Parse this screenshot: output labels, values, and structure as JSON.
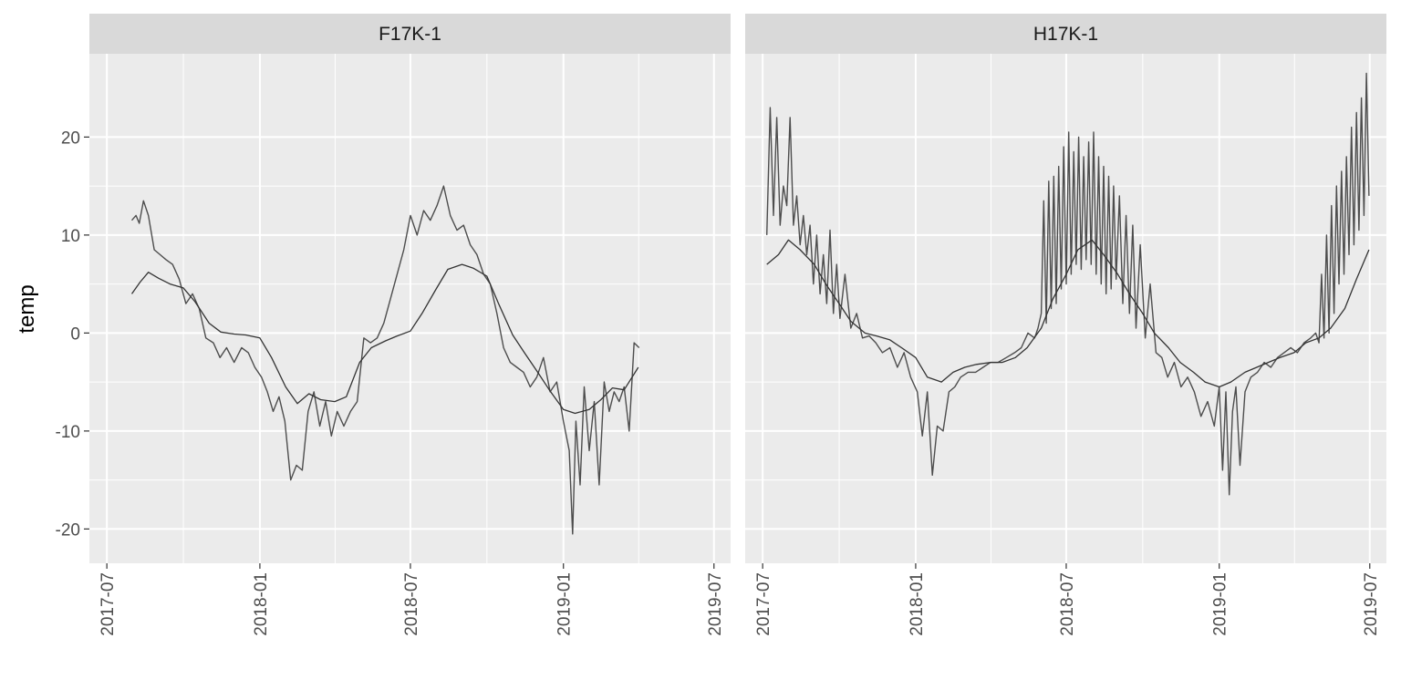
{
  "chart_data": {
    "type": "line",
    "ylabel": "temp",
    "xlabel": "",
    "y_ticks": [
      -20,
      -10,
      0,
      10,
      20
    ],
    "y_tick_labels": [
      "-20",
      "-10",
      "0",
      "10",
      "20"
    ],
    "ylim": [
      -23.5,
      28.5
    ],
    "x_ticks": [
      "2017-07-01",
      "2018-01-01",
      "2018-07-01",
      "2019-01-01",
      "2019-07-01"
    ],
    "x_tick_labels": [
      "2017-07",
      "2018-01",
      "2018-07",
      "2019-01",
      "2019-07"
    ],
    "xlim": [
      "2017-06-10",
      "2019-07-21"
    ],
    "grid": true,
    "colors": {
      "panel_bg": "#ebebeb",
      "strip_bg": "#d9d9d9",
      "grid": "#ffffff",
      "series_raw": "#4d4d4d",
      "series_smooth": "#333333"
    },
    "panels": [
      {
        "strip": "F17K-1",
        "series": [
          {
            "role": "raw",
            "x": [
              "2017-07-31",
              "2017-08-05",
              "2017-08-09",
              "2017-08-14",
              "2017-08-20",
              "2017-08-27",
              "2017-09-03",
              "2017-09-10",
              "2017-09-18",
              "2017-09-26",
              "2017-10-04",
              "2017-10-12",
              "2017-10-20",
              "2017-10-28",
              "2017-11-06",
              "2017-11-14",
              "2017-11-22",
              "2017-12-01",
              "2017-12-10",
              "2017-12-18",
              "2017-12-26",
              "2018-01-03",
              "2018-01-10",
              "2018-01-17",
              "2018-01-24",
              "2018-01-31",
              "2018-02-07",
              "2018-02-14",
              "2018-02-21",
              "2018-02-28",
              "2018-03-07",
              "2018-03-14",
              "2018-03-21",
              "2018-03-28",
              "2018-04-04",
              "2018-04-12",
              "2018-04-20",
              "2018-04-28",
              "2018-05-06",
              "2018-05-14",
              "2018-05-22",
              "2018-05-30",
              "2018-06-07",
              "2018-06-15",
              "2018-06-23",
              "2018-07-01",
              "2018-07-09",
              "2018-07-17",
              "2018-07-25",
              "2018-08-02",
              "2018-08-10",
              "2018-08-18",
              "2018-08-26",
              "2018-09-03",
              "2018-09-11",
              "2018-09-19",
              "2018-09-27",
              "2018-10-05",
              "2018-10-13",
              "2018-10-21",
              "2018-10-29",
              "2018-11-06",
              "2018-11-14",
              "2018-11-22",
              "2018-11-30",
              "2018-12-08",
              "2018-12-16",
              "2018-12-24",
              "2019-01-01",
              "2019-01-08",
              "2019-01-12",
              "2019-01-16",
              "2019-01-21",
              "2019-01-26",
              "2019-02-01",
              "2019-02-07",
              "2019-02-13",
              "2019-02-19",
              "2019-02-25",
              "2019-03-03",
              "2019-03-09",
              "2019-03-15",
              "2019-03-21",
              "2019-03-27",
              "2019-04-02"
            ],
            "y": [
              11.5,
              12.0,
              11.2,
              13.5,
              12.0,
              8.5,
              8.0,
              7.5,
              7.0,
              5.5,
              3.0,
              4.0,
              2.5,
              -0.5,
              -1.0,
              -2.5,
              -1.5,
              -3.0,
              -1.5,
              -2.0,
              -3.5,
              -4.5,
              -6.0,
              -8.0,
              -6.5,
              -9.0,
              -15.0,
              -13.5,
              -14.0,
              -8.0,
              -6.0,
              -9.5,
              -7.0,
              -10.5,
              -8.0,
              -9.5,
              -8.0,
              -7.0,
              -0.5,
              -1.0,
              -0.5,
              1.0,
              3.5,
              6.0,
              8.5,
              12.0,
              10.0,
              12.5,
              11.5,
              13.0,
              15.0,
              12.0,
              10.5,
              11.0,
              9.0,
              8.0,
              6.0,
              5.0,
              2.0,
              -1.5,
              -3.0,
              -3.5,
              -4.0,
              -5.5,
              -4.5,
              -2.5,
              -6.0,
              -5.0,
              -9.0,
              -12.0,
              -20.5,
              -9.0,
              -15.5,
              -5.5,
              -12.0,
              -7.0,
              -15.5,
              -5.0,
              -8.0,
              -6.0,
              -7.0,
              -5.5,
              -10.0,
              -1.0,
              -1.5
            ]
          },
          {
            "role": "smooth",
            "x": [
              "2017-07-31",
              "2017-08-10",
              "2017-08-20",
              "2017-09-01",
              "2017-09-15",
              "2017-10-01",
              "2017-10-15",
              "2017-11-01",
              "2017-11-15",
              "2017-12-01",
              "2017-12-15",
              "2018-01-01",
              "2018-01-15",
              "2018-02-01",
              "2018-02-15",
              "2018-03-01",
              "2018-03-15",
              "2018-04-01",
              "2018-04-15",
              "2018-05-01",
              "2018-05-15",
              "2018-06-01",
              "2018-06-15",
              "2018-07-01",
              "2018-07-15",
              "2018-08-01",
              "2018-08-15",
              "2018-09-01",
              "2018-09-15",
              "2018-10-01",
              "2018-10-15",
              "2018-11-01",
              "2018-11-15",
              "2018-12-01",
              "2018-12-15",
              "2019-01-01",
              "2019-01-15",
              "2019-02-01",
              "2019-02-15",
              "2019-03-01",
              "2019-03-15",
              "2019-04-01"
            ],
            "y": [
              4.0,
              5.2,
              6.2,
              5.6,
              5.0,
              4.6,
              3.2,
              1.0,
              0.1,
              -0.1,
              -0.2,
              -0.5,
              -2.5,
              -5.5,
              -7.2,
              -6.2,
              -6.8,
              -7.0,
              -6.5,
              -3.0,
              -1.5,
              -0.8,
              -0.3,
              0.2,
              2.0,
              4.5,
              6.5,
              7.0,
              6.6,
              5.8,
              3.0,
              -0.2,
              -2.0,
              -4.0,
              -5.8,
              -7.8,
              -8.2,
              -7.8,
              -6.8,
              -5.6,
              -5.8,
              -3.5
            ]
          }
        ]
      },
      {
        "strip": "H17K-1",
        "series": [
          {
            "role": "raw",
            "x": [
              "2017-07-06",
              "2017-07-10",
              "2017-07-14",
              "2017-07-18",
              "2017-07-22",
              "2017-07-26",
              "2017-07-30",
              "2017-08-03",
              "2017-08-07",
              "2017-08-11",
              "2017-08-15",
              "2017-08-19",
              "2017-08-23",
              "2017-08-27",
              "2017-08-31",
              "2017-09-04",
              "2017-09-08",
              "2017-09-12",
              "2017-09-16",
              "2017-09-20",
              "2017-09-24",
              "2017-09-28",
              "2017-10-02",
              "2017-10-08",
              "2017-10-15",
              "2017-10-22",
              "2017-10-29",
              "2017-11-06",
              "2017-11-14",
              "2017-11-22",
              "2017-12-01",
              "2017-12-10",
              "2017-12-18",
              "2017-12-26",
              "2018-01-03",
              "2018-01-09",
              "2018-01-15",
              "2018-01-21",
              "2018-01-27",
              "2018-02-03",
              "2018-02-10",
              "2018-02-17",
              "2018-02-24",
              "2018-03-05",
              "2018-03-14",
              "2018-03-23",
              "2018-04-01",
              "2018-04-10",
              "2018-04-20",
              "2018-04-30",
              "2018-05-08",
              "2018-05-16",
              "2018-05-24",
              "2018-05-28",
              "2018-06-01",
              "2018-06-04",
              "2018-06-07",
              "2018-06-10",
              "2018-06-13",
              "2018-06-16",
              "2018-06-19",
              "2018-06-22",
              "2018-06-25",
              "2018-06-28",
              "2018-07-01",
              "2018-07-04",
              "2018-07-07",
              "2018-07-10",
              "2018-07-13",
              "2018-07-16",
              "2018-07-19",
              "2018-07-22",
              "2018-07-25",
              "2018-07-28",
              "2018-07-31",
              "2018-08-03",
              "2018-08-06",
              "2018-08-09",
              "2018-08-12",
              "2018-08-15",
              "2018-08-18",
              "2018-08-21",
              "2018-08-24",
              "2018-08-27",
              "2018-08-30",
              "2018-09-03",
              "2018-09-07",
              "2018-09-11",
              "2018-09-15",
              "2018-09-19",
              "2018-09-23",
              "2018-09-28",
              "2018-10-04",
              "2018-10-10",
              "2018-10-17",
              "2018-10-24",
              "2018-10-31",
              "2018-11-08",
              "2018-11-16",
              "2018-11-24",
              "2018-12-02",
              "2018-12-10",
              "2018-12-18",
              "2018-12-26",
              "2019-01-01",
              "2019-01-05",
              "2019-01-09",
              "2019-01-13",
              "2019-01-17",
              "2019-01-21",
              "2019-01-26",
              "2019-02-01",
              "2019-02-08",
              "2019-02-16",
              "2019-02-24",
              "2019-03-04",
              "2019-03-12",
              "2019-03-20",
              "2019-03-28",
              "2019-04-05",
              "2019-04-13",
              "2019-04-21",
              "2019-04-27",
              "2019-05-01",
              "2019-05-04",
              "2019-05-07",
              "2019-05-10",
              "2019-05-13",
              "2019-05-16",
              "2019-05-19",
              "2019-05-22",
              "2019-05-25",
              "2019-05-28",
              "2019-05-31",
              "2019-06-03",
              "2019-06-06",
              "2019-06-09",
              "2019-06-12",
              "2019-06-15",
              "2019-06-18",
              "2019-06-21",
              "2019-06-24",
              "2019-06-27",
              "2019-06-30"
            ],
            "y": [
              10.0,
              23.0,
              12.0,
              22.0,
              11.0,
              15.0,
              13.0,
              22.0,
              11.0,
              14.0,
              9.0,
              12.0,
              8.0,
              11.0,
              5.0,
              10.0,
              4.0,
              8.0,
              3.0,
              10.5,
              2.0,
              7.0,
              1.5,
              6.0,
              0.5,
              2.0,
              -0.5,
              -0.3,
              -1.0,
              -2.0,
              -1.5,
              -3.5,
              -2.0,
              -4.5,
              -6.0,
              -10.5,
              -6.0,
              -14.5,
              -9.5,
              -10.0,
              -6.0,
              -5.5,
              -4.5,
              -4.0,
              -4.0,
              -3.5,
              -3.0,
              -3.0,
              -2.5,
              -2.0,
              -1.5,
              0.0,
              -0.5,
              0.5,
              2.0,
              13.5,
              1.0,
              15.5,
              2.5,
              16.0,
              3.0,
              17.0,
              4.5,
              19.0,
              5.0,
              20.5,
              6.0,
              18.5,
              7.0,
              20.0,
              6.5,
              18.0,
              7.5,
              19.5,
              7.0,
              20.5,
              6.0,
              18.0,
              5.0,
              17.0,
              4.0,
              16.0,
              4.5,
              15.0,
              5.5,
              14.0,
              3.0,
              12.0,
              2.0,
              11.0,
              0.5,
              9.0,
              -0.5,
              5.0,
              -2.0,
              -2.5,
              -4.5,
              -3.0,
              -5.5,
              -4.5,
              -6.0,
              -8.5,
              -7.0,
              -9.5,
              -5.5,
              -14.0,
              -6.0,
              -16.5,
              -8.0,
              -5.5,
              -13.5,
              -6.0,
              -4.5,
              -4.0,
              -3.0,
              -3.5,
              -2.5,
              -2.0,
              -1.5,
              -2.0,
              -1.0,
              -0.5,
              0.0,
              -1.0,
              6.0,
              -0.5,
              10.0,
              0.0,
              13.0,
              2.0,
              15.0,
              5.0,
              16.5,
              6.0,
              18.0,
              8.0,
              21.0,
              9.0,
              22.5,
              10.5,
              24.0,
              12.0,
              26.5,
              14.0
            ]
          },
          {
            "role": "smooth",
            "x": [
              "2017-07-06",
              "2017-07-20",
              "2017-08-01",
              "2017-08-15",
              "2017-09-01",
              "2017-09-15",
              "2017-10-01",
              "2017-10-15",
              "2017-11-01",
              "2017-11-15",
              "2017-12-01",
              "2017-12-15",
              "2018-01-01",
              "2018-01-15",
              "2018-02-01",
              "2018-02-15",
              "2018-03-01",
              "2018-03-15",
              "2018-04-01",
              "2018-04-15",
              "2018-05-01",
              "2018-05-15",
              "2018-06-01",
              "2018-06-15",
              "2018-07-01",
              "2018-07-15",
              "2018-08-01",
              "2018-08-15",
              "2018-09-01",
              "2018-09-15",
              "2018-10-01",
              "2018-10-15",
              "2018-11-01",
              "2018-11-15",
              "2018-12-01",
              "2018-12-15",
              "2019-01-01",
              "2019-01-15",
              "2019-02-01",
              "2019-02-15",
              "2019-03-01",
              "2019-03-15",
              "2019-04-01",
              "2019-04-15",
              "2019-05-01",
              "2019-05-15",
              "2019-06-01",
              "2019-06-15",
              "2019-06-30"
            ],
            "y": [
              7.0,
              8.0,
              9.5,
              8.5,
              7.0,
              5.0,
              3.0,
              1.2,
              0.0,
              -0.3,
              -0.7,
              -1.5,
              -2.5,
              -4.5,
              -5.0,
              -4.0,
              -3.5,
              -3.2,
              -3.0,
              -3.0,
              -2.5,
              -1.5,
              0.5,
              3.5,
              6.0,
              8.5,
              9.5,
              8.0,
              6.0,
              4.0,
              2.0,
              0.0,
              -1.5,
              -3.0,
              -4.0,
              -5.0,
              -5.5,
              -5.0,
              -4.0,
              -3.5,
              -3.0,
              -2.5,
              -2.0,
              -1.0,
              -0.5,
              0.5,
              2.5,
              5.5,
              8.5
            ]
          }
        ]
      }
    ]
  }
}
